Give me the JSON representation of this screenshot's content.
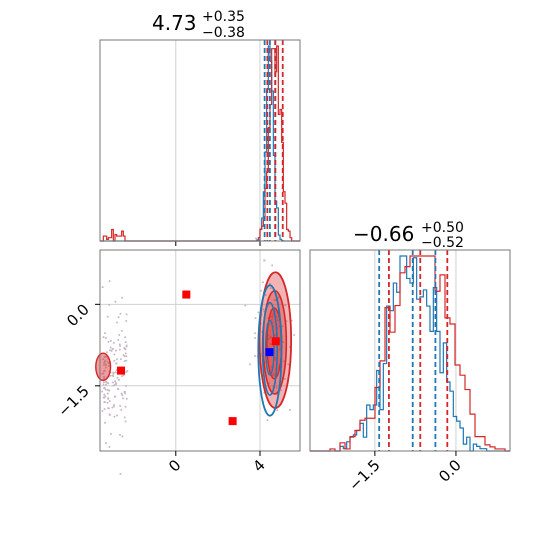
{
  "colors": {
    "blue": "#1f77b4",
    "red": "#d62728",
    "grid": "#d0d0d0",
    "marker_red": "#ff0000",
    "marker_blue": "#0000ff"
  },
  "chart_data": [
    {
      "type": "histogram",
      "panel": "p1-marginal",
      "title": {
        "value": "4.73",
        "upper": "+0.35",
        "lower": "−0.38"
      },
      "xlim": [
        -3.6,
        5.9
      ],
      "grid": true,
      "series": [
        {
          "color": "blue",
          "quantiles": [
            4.22,
            4.47,
            4.72
          ]
        },
        {
          "color": "red",
          "quantiles": [
            4.35,
            4.73,
            5.08
          ]
        }
      ],
      "tick_labels": []
    },
    {
      "type": "scatter",
      "panel": "p1-p2-joint",
      "xlim": [
        -3.6,
        5.9
      ],
      "ylim": [
        -2.7,
        1.0
      ],
      "grid": true,
      "x_ticks": [
        0,
        4
      ],
      "x_tick_labels": [
        "0",
        "4"
      ],
      "y_ticks": [
        0.0,
        -1.5
      ],
      "y_tick_labels": [
        "0.0",
        "−1.5"
      ],
      "markers": [
        {
          "x": 0.5,
          "y": 0.18,
          "color": "marker_red"
        },
        {
          "x": 2.7,
          "y": -2.15,
          "color": "marker_red"
        },
        {
          "x": -2.6,
          "y": -1.22,
          "color": "marker_red"
        },
        {
          "x": 4.75,
          "y": -0.68,
          "color": "marker_red"
        },
        {
          "x": 4.45,
          "y": -0.88,
          "color": "marker_blue"
        }
      ]
    },
    {
      "type": "histogram",
      "panel": "p2-marginal",
      "title": {
        "value": "−0.66",
        "upper": "+0.50",
        "lower": "−0.52"
      },
      "xlim": [
        -2.7,
        1.0
      ],
      "grid": true,
      "x_ticks": [
        -1.5,
        0.0
      ],
      "x_tick_labels": [
        "−1.5",
        "0.0"
      ],
      "series": [
        {
          "color": "blue",
          "quantiles": [
            -1.42,
            -0.8,
            -0.38
          ]
        },
        {
          "color": "red",
          "quantiles": [
            -1.24,
            -0.66,
            -0.16
          ]
        }
      ]
    }
  ]
}
